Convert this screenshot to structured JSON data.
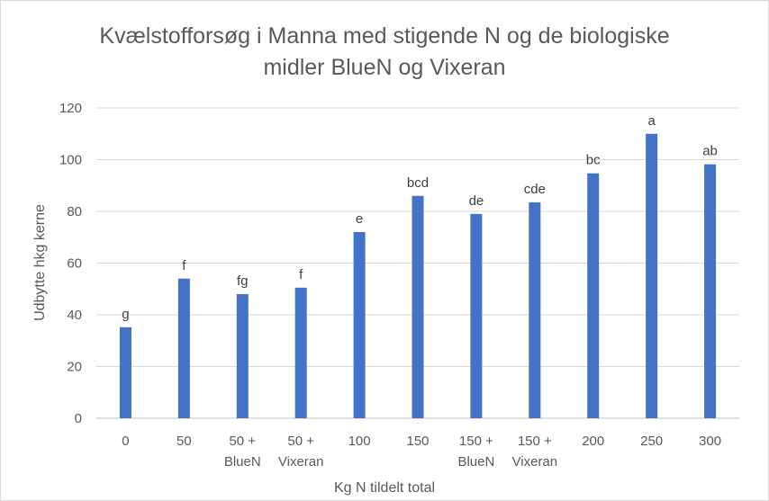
{
  "chart_data": {
    "type": "bar",
    "title_lines": [
      "Kvælstofforsøg i Manna med stigende N og de biologiske",
      "midler BlueN og Vixeran"
    ],
    "xlabel": "Kg N tildelt total",
    "ylabel": "Udbytte hkg kerne",
    "ylim": [
      0,
      120
    ],
    "yticks": [
      0,
      20,
      40,
      60,
      80,
      100,
      120
    ],
    "grid": true,
    "legend": "none",
    "bar_color": "#4472c4",
    "categories": [
      [
        "0"
      ],
      [
        "50"
      ],
      [
        "50 +",
        "BlueN"
      ],
      [
        "50 +",
        "Vixeran"
      ],
      [
        "100"
      ],
      [
        "150"
      ],
      [
        "150 +",
        "BlueN"
      ],
      [
        "150 +",
        "Vixeran"
      ],
      [
        "200"
      ],
      [
        "250"
      ],
      [
        "300"
      ]
    ],
    "values": [
      35.2,
      54,
      48,
      50.5,
      72,
      86,
      79,
      83.5,
      94.7,
      110,
      98.2
    ],
    "data_labels": [
      "g",
      "f",
      "fg",
      "f",
      "e",
      "bcd",
      "de",
      "cde",
      "bc",
      "a",
      "ab"
    ]
  }
}
